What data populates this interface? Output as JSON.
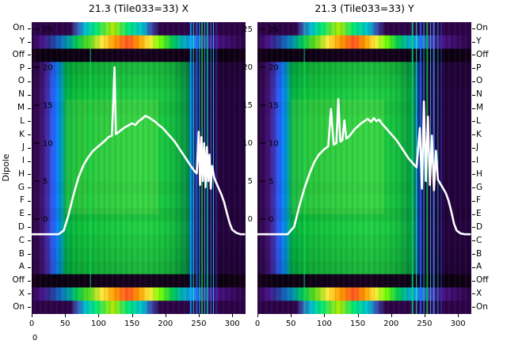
{
  "figure": {
    "background": "#ffffff",
    "stray_label": "0"
  },
  "dipole_axis": {
    "label": "Dipole"
  },
  "chart_data": {
    "type": "heatmap",
    "colormap": "jet-like",
    "x_range": [
      0,
      320
    ],
    "x_tick_values": [
      0,
      50,
      100,
      150,
      200,
      250,
      300
    ],
    "power_tick_values": [
      25,
      20,
      15,
      10,
      5,
      0
    ],
    "row_axis_label": "Dipole",
    "colors": {
      "beam_curve": "#ffffff",
      "background_low": "#24033d",
      "signal_green": "#1dcc42",
      "off_row": "#100016"
    },
    "rows": [
      {
        "label": "On",
        "kind": "edge"
      },
      {
        "label": "Y",
        "kind": "pol"
      },
      {
        "label": "Off",
        "kind": "off"
      },
      {
        "label": "P",
        "kind": "body"
      },
      {
        "label": "O",
        "kind": "body"
      },
      {
        "label": "N",
        "kind": "body"
      },
      {
        "label": "M",
        "kind": "body"
      },
      {
        "label": "L",
        "kind": "body"
      },
      {
        "label": "K",
        "kind": "body"
      },
      {
        "label": "J",
        "kind": "body"
      },
      {
        "label": "I",
        "kind": "body"
      },
      {
        "label": "H",
        "kind": "body"
      },
      {
        "label": "G",
        "kind": "body"
      },
      {
        "label": "F",
        "kind": "body"
      },
      {
        "label": "E",
        "kind": "body"
      },
      {
        "label": "D",
        "kind": "body"
      },
      {
        "label": "C",
        "kind": "body"
      },
      {
        "label": "B",
        "kind": "body"
      },
      {
        "label": "A",
        "kind": "body"
      },
      {
        "label": "Off",
        "kind": "off"
      },
      {
        "label": "X",
        "kind": "pol"
      },
      {
        "label": "On",
        "kind": "edge"
      }
    ],
    "panels": [
      {
        "title": "21.3 (Tile033=33) X",
        "beam_profile": {
          "x": [
            0,
            40,
            48,
            55,
            62,
            70,
            78,
            85,
            92,
            100,
            108,
            115,
            120,
            124,
            126,
            128,
            132,
            138,
            144,
            150,
            155,
            160,
            165,
            170,
            175,
            180,
            185,
            190,
            196,
            202,
            208,
            214,
            220,
            226,
            232,
            238,
            243,
            247,
            250,
            252,
            254,
            256,
            258,
            260,
            262,
            264,
            266,
            268,
            270,
            273,
            276,
            280,
            284,
            288,
            292,
            296,
            300,
            306,
            312,
            318
          ],
          "power_db": [
            -2,
            -2,
            -1.5,
            0.5,
            3,
            5.5,
            7.2,
            8.2,
            9,
            9.6,
            10.2,
            10.8,
            11,
            20,
            11.2,
            11.3,
            11.6,
            12,
            12.3,
            12.6,
            12.4,
            12.9,
            13.2,
            13.6,
            13.4,
            13.1,
            12.8,
            12.4,
            12,
            11.4,
            10.8,
            10.2,
            9.4,
            8.6,
            7.8,
            7,
            6.4,
            6,
            11.5,
            4.5,
            10.8,
            5,
            10,
            4.2,
            9.5,
            5,
            8.5,
            4,
            7,
            5.5,
            4.8,
            4,
            3.2,
            2.2,
            0.8,
            -0.5,
            -1.4,
            -1.8,
            -2,
            -2
          ]
        },
        "rfi_lines": [
          {
            "x": 88,
            "c": "#00e676",
            "w": 1
          },
          {
            "x": 238,
            "c": "#00b0ff",
            "w": 2
          },
          {
            "x": 242,
            "c": "#18ffff",
            "w": 1
          },
          {
            "x": 247,
            "c": "#2962ff",
            "w": 2
          },
          {
            "x": 251,
            "c": "#00e5ff",
            "w": 1
          },
          {
            "x": 255,
            "c": "#00c853",
            "w": 2
          },
          {
            "x": 259,
            "c": "#40c4ff",
            "w": 1
          },
          {
            "x": 263,
            "c": "#00bfa5",
            "w": 2
          },
          {
            "x": 268,
            "c": "#448aff",
            "w": 1
          },
          {
            "x": 272,
            "c": "#00e5ff",
            "w": 1
          },
          {
            "x": 276,
            "c": "#304ffe",
            "w": 1
          }
        ]
      },
      {
        "title": "21.3 (Tile033=33) Y",
        "beam_profile": {
          "x": [
            0,
            45,
            55,
            62,
            70,
            78,
            85,
            92,
            100,
            106,
            110,
            114,
            118,
            121,
            124,
            127,
            130,
            133,
            136,
            140,
            145,
            150,
            155,
            160,
            165,
            170,
            174,
            178,
            182,
            186,
            190,
            196,
            202,
            208,
            214,
            220,
            226,
            232,
            238,
            243,
            246,
            249,
            252,
            255,
            258,
            261,
            264,
            267,
            270,
            274,
            278,
            282,
            286,
            290,
            294,
            298,
            304,
            310,
            318
          ],
          "power_db": [
            -2,
            -2,
            -1,
            1.5,
            4,
            6,
            7.5,
            8.5,
            9.2,
            9.6,
            14.5,
            9.8,
            10,
            15.8,
            10.2,
            10.4,
            13,
            10.6,
            10.8,
            11.2,
            11.8,
            12.2,
            12.6,
            12.9,
            13.2,
            12.8,
            13.3,
            12.9,
            13.1,
            12.6,
            12.2,
            11.6,
            11,
            10.4,
            9.6,
            8.8,
            8,
            7.4,
            6.8,
            12,
            4,
            15.5,
            5,
            13.5,
            4.5,
            11,
            3.8,
            9,
            5.2,
            4.6,
            4,
            3.4,
            2.4,
            1,
            -0.6,
            -1.5,
            -1.9,
            -2,
            -2
          ]
        },
        "rfi_lines": [
          {
            "x": 70,
            "c": "#00e676",
            "w": 1
          },
          {
            "x": 232,
            "c": "#00e676",
            "w": 2
          },
          {
            "x": 238,
            "c": "#18ffff",
            "w": 1
          },
          {
            "x": 244,
            "c": "#2962ff",
            "w": 2
          },
          {
            "x": 249,
            "c": "#00e5ff",
            "w": 1
          },
          {
            "x": 254,
            "c": "#00c853",
            "w": 2
          },
          {
            "x": 259,
            "c": "#40c4ff",
            "w": 1
          },
          {
            "x": 264,
            "c": "#448aff",
            "w": 2
          },
          {
            "x": 270,
            "c": "#00bfa5",
            "w": 1
          },
          {
            "x": 275,
            "c": "#304ffe",
            "w": 1
          }
        ]
      }
    ]
  }
}
